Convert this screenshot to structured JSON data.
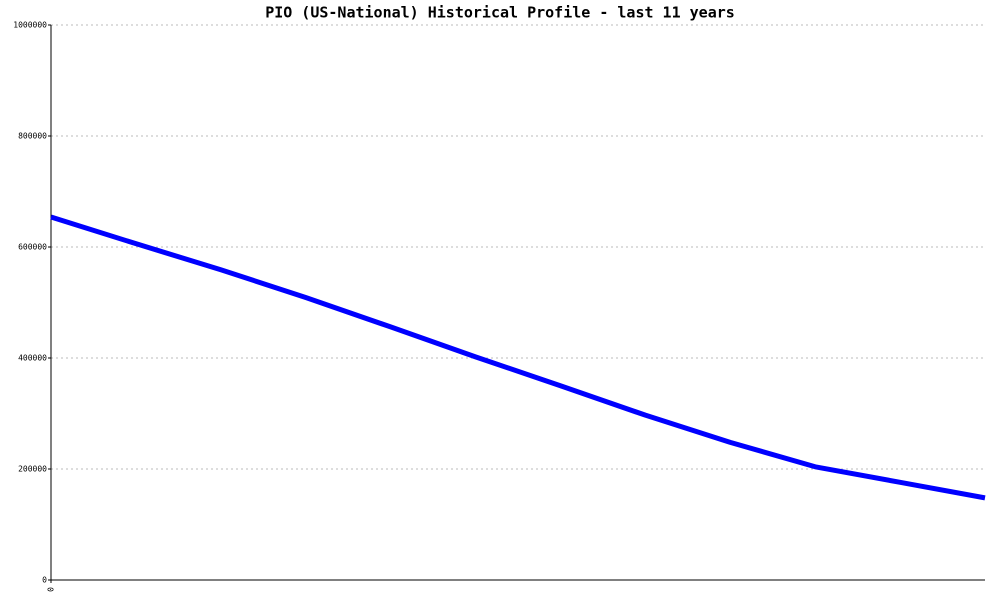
{
  "chart_data": {
    "type": "line",
    "title": "PIO (US-National) Historical Profile - last 11 years",
    "x": [
      0,
      1,
      2,
      3,
      4,
      5,
      6,
      7,
      8,
      9,
      10,
      11
    ],
    "series": [
      {
        "name": "PIO",
        "color": "#0000ff",
        "values": [
          654000,
          606000,
          559000,
          509000,
          456000,
          402000,
          350000,
          297000,
          248000,
          204000,
          176000,
          148000
        ]
      }
    ],
    "xlim": [
      0,
      11
    ],
    "xticks": [
      0
    ],
    "ylim": [
      0,
      1000000
    ],
    "yticks": [
      0,
      200000,
      400000,
      600000,
      800000,
      1000000
    ],
    "grid": true
  }
}
